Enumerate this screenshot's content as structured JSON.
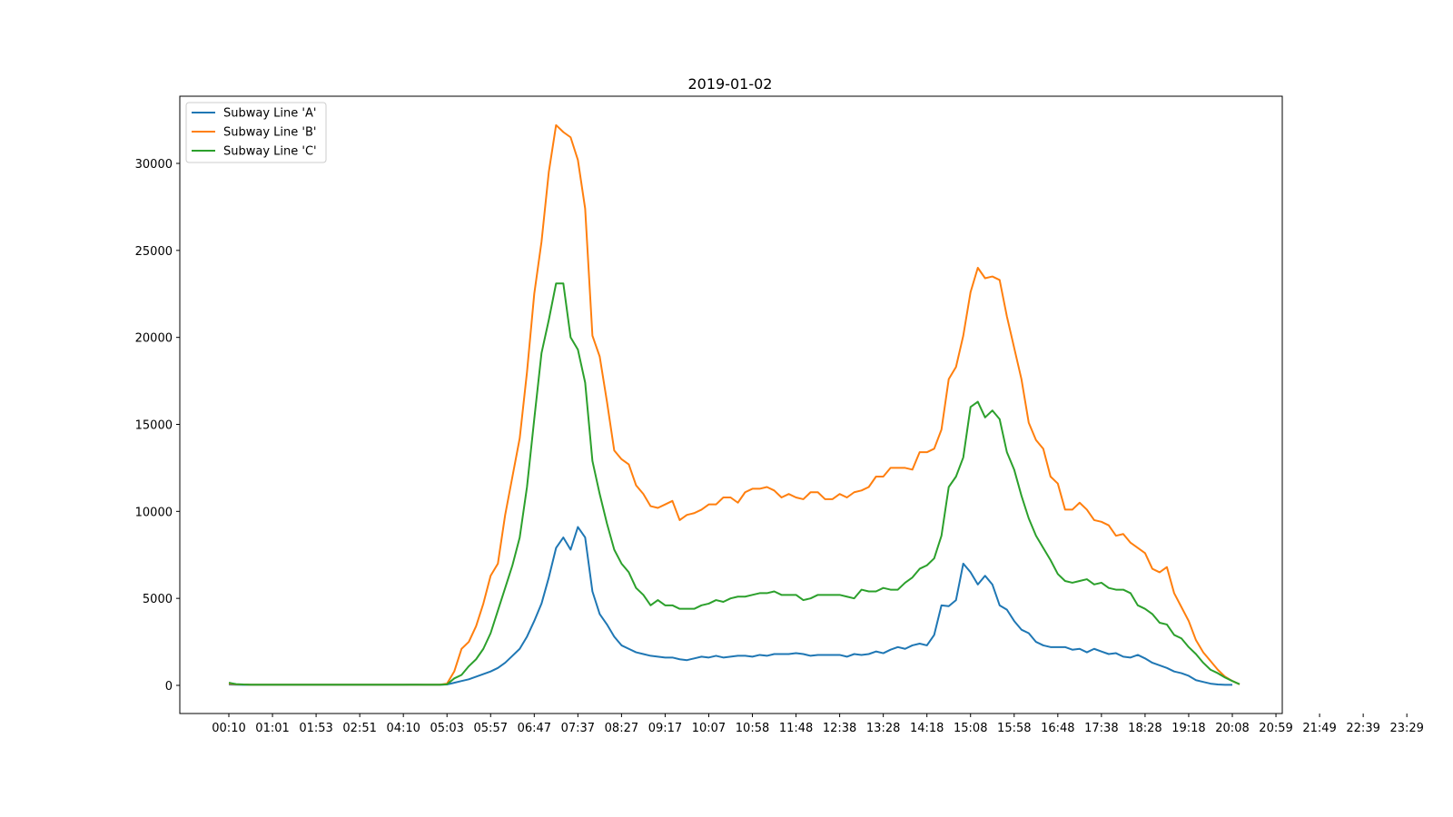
{
  "chart_data": {
    "type": "line",
    "title": "2019-01-02",
    "xlabel": "",
    "ylabel": "",
    "ylim": [
      -1600,
      33800
    ],
    "yticks": [
      0,
      5000,
      10000,
      15000,
      20000,
      25000,
      30000
    ],
    "ytick_labels": [
      "0",
      "5000",
      "10000",
      "15000",
      "20000",
      "25000",
      "30000"
    ],
    "xtick_labels": [
      "00:10",
      "01:01",
      "01:53",
      "02:51",
      "04:10",
      "05:03",
      "05:57",
      "06:47",
      "07:37",
      "08:27",
      "09:17",
      "10:07",
      "10:58",
      "11:48",
      "12:38",
      "13:28",
      "14:18",
      "15:08",
      "15:58",
      "16:48",
      "17:38",
      "18:28",
      "19:18",
      "20:08",
      "20:59",
      "21:49",
      "22:39",
      "23:29"
    ],
    "legend": {
      "position": "upper-left"
    },
    "grid": false,
    "series": [
      {
        "name": "Subway Line 'A'",
        "color": "#1f77b4",
        "values": [
          50,
          40,
          30,
          30,
          30,
          30,
          30,
          30,
          30,
          30,
          30,
          30,
          30,
          30,
          30,
          30,
          30,
          30,
          30,
          30,
          30,
          30,
          30,
          30,
          30,
          40,
          40,
          30,
          30,
          30,
          50,
          150,
          250,
          350,
          500,
          650,
          800,
          1000,
          1300,
          1700,
          2100,
          2800,
          3700,
          4700,
          6200,
          7900,
          8500,
          7800,
          9100,
          8500,
          5400,
          4100,
          3500,
          2800,
          2300,
          2100,
          1900,
          1800,
          1700,
          1650,
          1600,
          1600,
          1500,
          1450,
          1550,
          1650,
          1600,
          1700,
          1600,
          1650,
          1700,
          1700,
          1650,
          1750,
          1700,
          1800,
          1800,
          1800,
          1850,
          1800,
          1700,
          1750,
          1750,
          1750,
          1750,
          1650,
          1800,
          1750,
          1800,
          1950,
          1850,
          2050,
          2200,
          2100,
          2300,
          2400,
          2300,
          2900,
          4600,
          4550,
          4900,
          7000,
          6500,
          5800,
          6300,
          5800,
          4600,
          4350,
          3700,
          3200,
          3000,
          2500,
          2300,
          2200,
          2200,
          2200,
          2050,
          2100,
          1900,
          2100,
          1950,
          1800,
          1850,
          1650,
          1600,
          1750,
          1550,
          1300,
          1150,
          1000,
          800,
          700,
          550,
          300,
          200,
          100,
          50,
          30,
          30
        ]
      },
      {
        "name": "Subway Line 'B'",
        "color": "#ff7f0e",
        "values": [
          100,
          60,
          50,
          40,
          40,
          40,
          40,
          40,
          40,
          40,
          40,
          40,
          40,
          40,
          40,
          40,
          40,
          40,
          40,
          40,
          40,
          40,
          40,
          40,
          40,
          40,
          40,
          40,
          40,
          40,
          100,
          800,
          2100,
          2500,
          3400,
          4700,
          6300,
          7000,
          9800,
          12000,
          14200,
          18000,
          22500,
          25500,
          29500,
          32200,
          31800,
          31500,
          30200,
          27400,
          20100,
          18900,
          16300,
          13500,
          13000,
          12700,
          11500,
          11000,
          10300,
          10200,
          10400,
          10600,
          9500,
          9800,
          9900,
          10100,
          10400,
          10400,
          10800,
          10800,
          10500,
          11100,
          11300,
          11300,
          11400,
          11200,
          10800,
          11000,
          10800,
          10700,
          11100,
          11100,
          10700,
          10700,
          11000,
          10800,
          11100,
          11200,
          11400,
          12000,
          12000,
          12500,
          12500,
          12500,
          12400,
          13400,
          13400,
          13600,
          14700,
          17600,
          18300,
          20100,
          22600,
          24000,
          23400,
          23500,
          23300,
          21200,
          19400,
          17600,
          15100,
          14100,
          13600,
          12000,
          11600,
          10100,
          10100,
          10500,
          10100,
          9500,
          9400,
          9200,
          8600,
          8700,
          8200,
          7900,
          7600,
          6700,
          6500,
          6800,
          5300,
          4500,
          3700,
          2600,
          1900,
          1400,
          900,
          500,
          250,
          60
        ]
      },
      {
        "name": "Subway Line 'C'",
        "color": "#2ca02c",
        "values": [
          150,
          70,
          50,
          40,
          40,
          40,
          40,
          40,
          40,
          40,
          40,
          40,
          40,
          40,
          40,
          40,
          40,
          40,
          40,
          40,
          40,
          40,
          40,
          40,
          40,
          40,
          40,
          40,
          40,
          40,
          60,
          400,
          600,
          1100,
          1500,
          2100,
          3000,
          4300,
          5600,
          6900,
          8500,
          11400,
          15300,
          19100,
          21000,
          23100,
          23100,
          20000,
          19300,
          17400,
          12900,
          11000,
          9300,
          7800,
          7000,
          6500,
          5600,
          5200,
          4600,
          4900,
          4600,
          4600,
          4400,
          4400,
          4400,
          4600,
          4700,
          4900,
          4800,
          5000,
          5100,
          5100,
          5200,
          5300,
          5300,
          5400,
          5200,
          5200,
          5200,
          4900,
          5000,
          5200,
          5200,
          5200,
          5200,
          5100,
          5000,
          5500,
          5400,
          5400,
          5600,
          5500,
          5500,
          5900,
          6200,
          6700,
          6900,
          7300,
          8600,
          11400,
          12000,
          13100,
          16000,
          16300,
          15400,
          15800,
          15300,
          13400,
          12400,
          10900,
          9600,
          8600,
          7900,
          7200,
          6400,
          6000,
          5900,
          6000,
          6100,
          5800,
          5900,
          5600,
          5500,
          5500,
          5300,
          4600,
          4400,
          4100,
          3600,
          3500,
          2900,
          2700,
          2200,
          1800,
          1300,
          900,
          700,
          450,
          250,
          70
        ]
      }
    ]
  }
}
